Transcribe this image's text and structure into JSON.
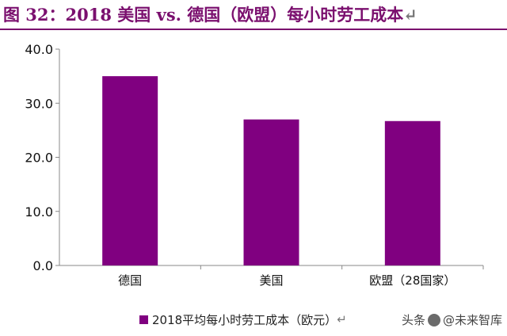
{
  "figure": {
    "title_prefix": "图 32：",
    "title_text": "2018 美国 vs. 德国（欧盟）每小时劳工成本",
    "title_color_prefix": "#7a0f6e",
    "title_color_text": "#7a0f6e",
    "accent": "#7a0f6e",
    "return_mark": "↵"
  },
  "chart_data": {
    "type": "bar",
    "title": "2018 美国 vs. 德国（欧盟）每小时劳工成本",
    "categories": [
      "德国",
      "美国",
      "欧盟（28国家）"
    ],
    "series": [
      {
        "name": "2018平均每小时劳工成本（欧元）",
        "values": [
          35.0,
          27.0,
          26.7
        ],
        "color": "#800080"
      }
    ],
    "ylim": [
      0,
      40
    ],
    "yticks": [
      0,
      10,
      20,
      30,
      40
    ],
    "ytick_labels": [
      "0.0",
      "10.0",
      "20.0",
      "30.0",
      "40.0"
    ],
    "xlabel": "",
    "ylabel": "",
    "grid": false,
    "legend_position": "bottom"
  },
  "watermark": {
    "prefix": "头条",
    "separator": "@",
    "name": "未来智库"
  }
}
